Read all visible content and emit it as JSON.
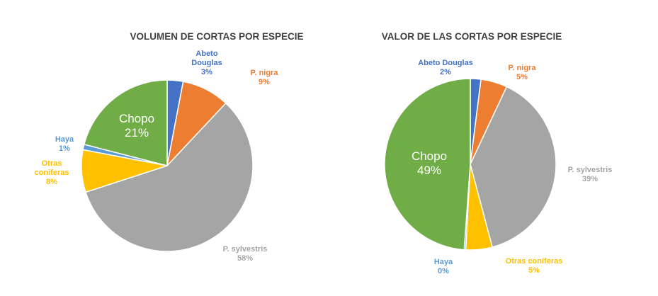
{
  "chart_data": [
    {
      "type": "pie",
      "title": "VOLUMEN DE CORTAS POR ESPECIE",
      "slices": [
        {
          "name": "Abeto Douglas",
          "label_lines": [
            "Abeto",
            "Douglas"
          ],
          "pct_label": "3%",
          "value": 3,
          "color": "#4472C4"
        },
        {
          "name": "P. nigra",
          "label_lines": [
            "P. nigra"
          ],
          "pct_label": "9%",
          "value": 9,
          "color": "#ED7D31"
        },
        {
          "name": "P. sylvestris",
          "label_lines": [
            "P. sylvestris"
          ],
          "pct_label": "58%",
          "value": 58,
          "color": "#A5A5A5"
        },
        {
          "name": "Otras coniferas",
          "label_lines": [
            "Otras",
            "coniferas"
          ],
          "pct_label": "8%",
          "value": 8,
          "color": "#FFC000"
        },
        {
          "name": "Haya",
          "label_lines": [
            "Haya"
          ],
          "pct_label": "1%",
          "value": 1,
          "color": "#5B9BD5"
        },
        {
          "name": "Chopo",
          "label_lines": [
            "Chopo"
          ],
          "pct_label": "21%",
          "value": 21,
          "color": "#70AD47"
        }
      ]
    },
    {
      "type": "pie",
      "title": "VALOR DE LAS CORTAS POR ESPECIE",
      "slices": [
        {
          "name": "Abeto Douglas",
          "label_lines": [
            "Abeto Douglas"
          ],
          "pct_label": "2%",
          "value": 2,
          "color": "#4472C4"
        },
        {
          "name": "P. nigra",
          "label_lines": [
            "P. nigra"
          ],
          "pct_label": "5%",
          "value": 5,
          "color": "#ED7D31"
        },
        {
          "name": "P. sylvestris",
          "label_lines": [
            "P. sylvestris"
          ],
          "pct_label": "39%",
          "value": 39,
          "color": "#A5A5A5"
        },
        {
          "name": "Otras coniferas",
          "label_lines": [
            "Otras coníferas"
          ],
          "pct_label": "5%",
          "value": 5,
          "color": "#FFC000"
        },
        {
          "name": "Haya",
          "label_lines": [
            "Haya"
          ],
          "pct_label": "0%",
          "value": 0.3,
          "color": "#5B9BD5"
        },
        {
          "name": "Chopo",
          "label_lines": [
            "Chopo"
          ],
          "pct_label": "49%",
          "value": 49,
          "color": "#70AD47"
        }
      ]
    }
  ]
}
